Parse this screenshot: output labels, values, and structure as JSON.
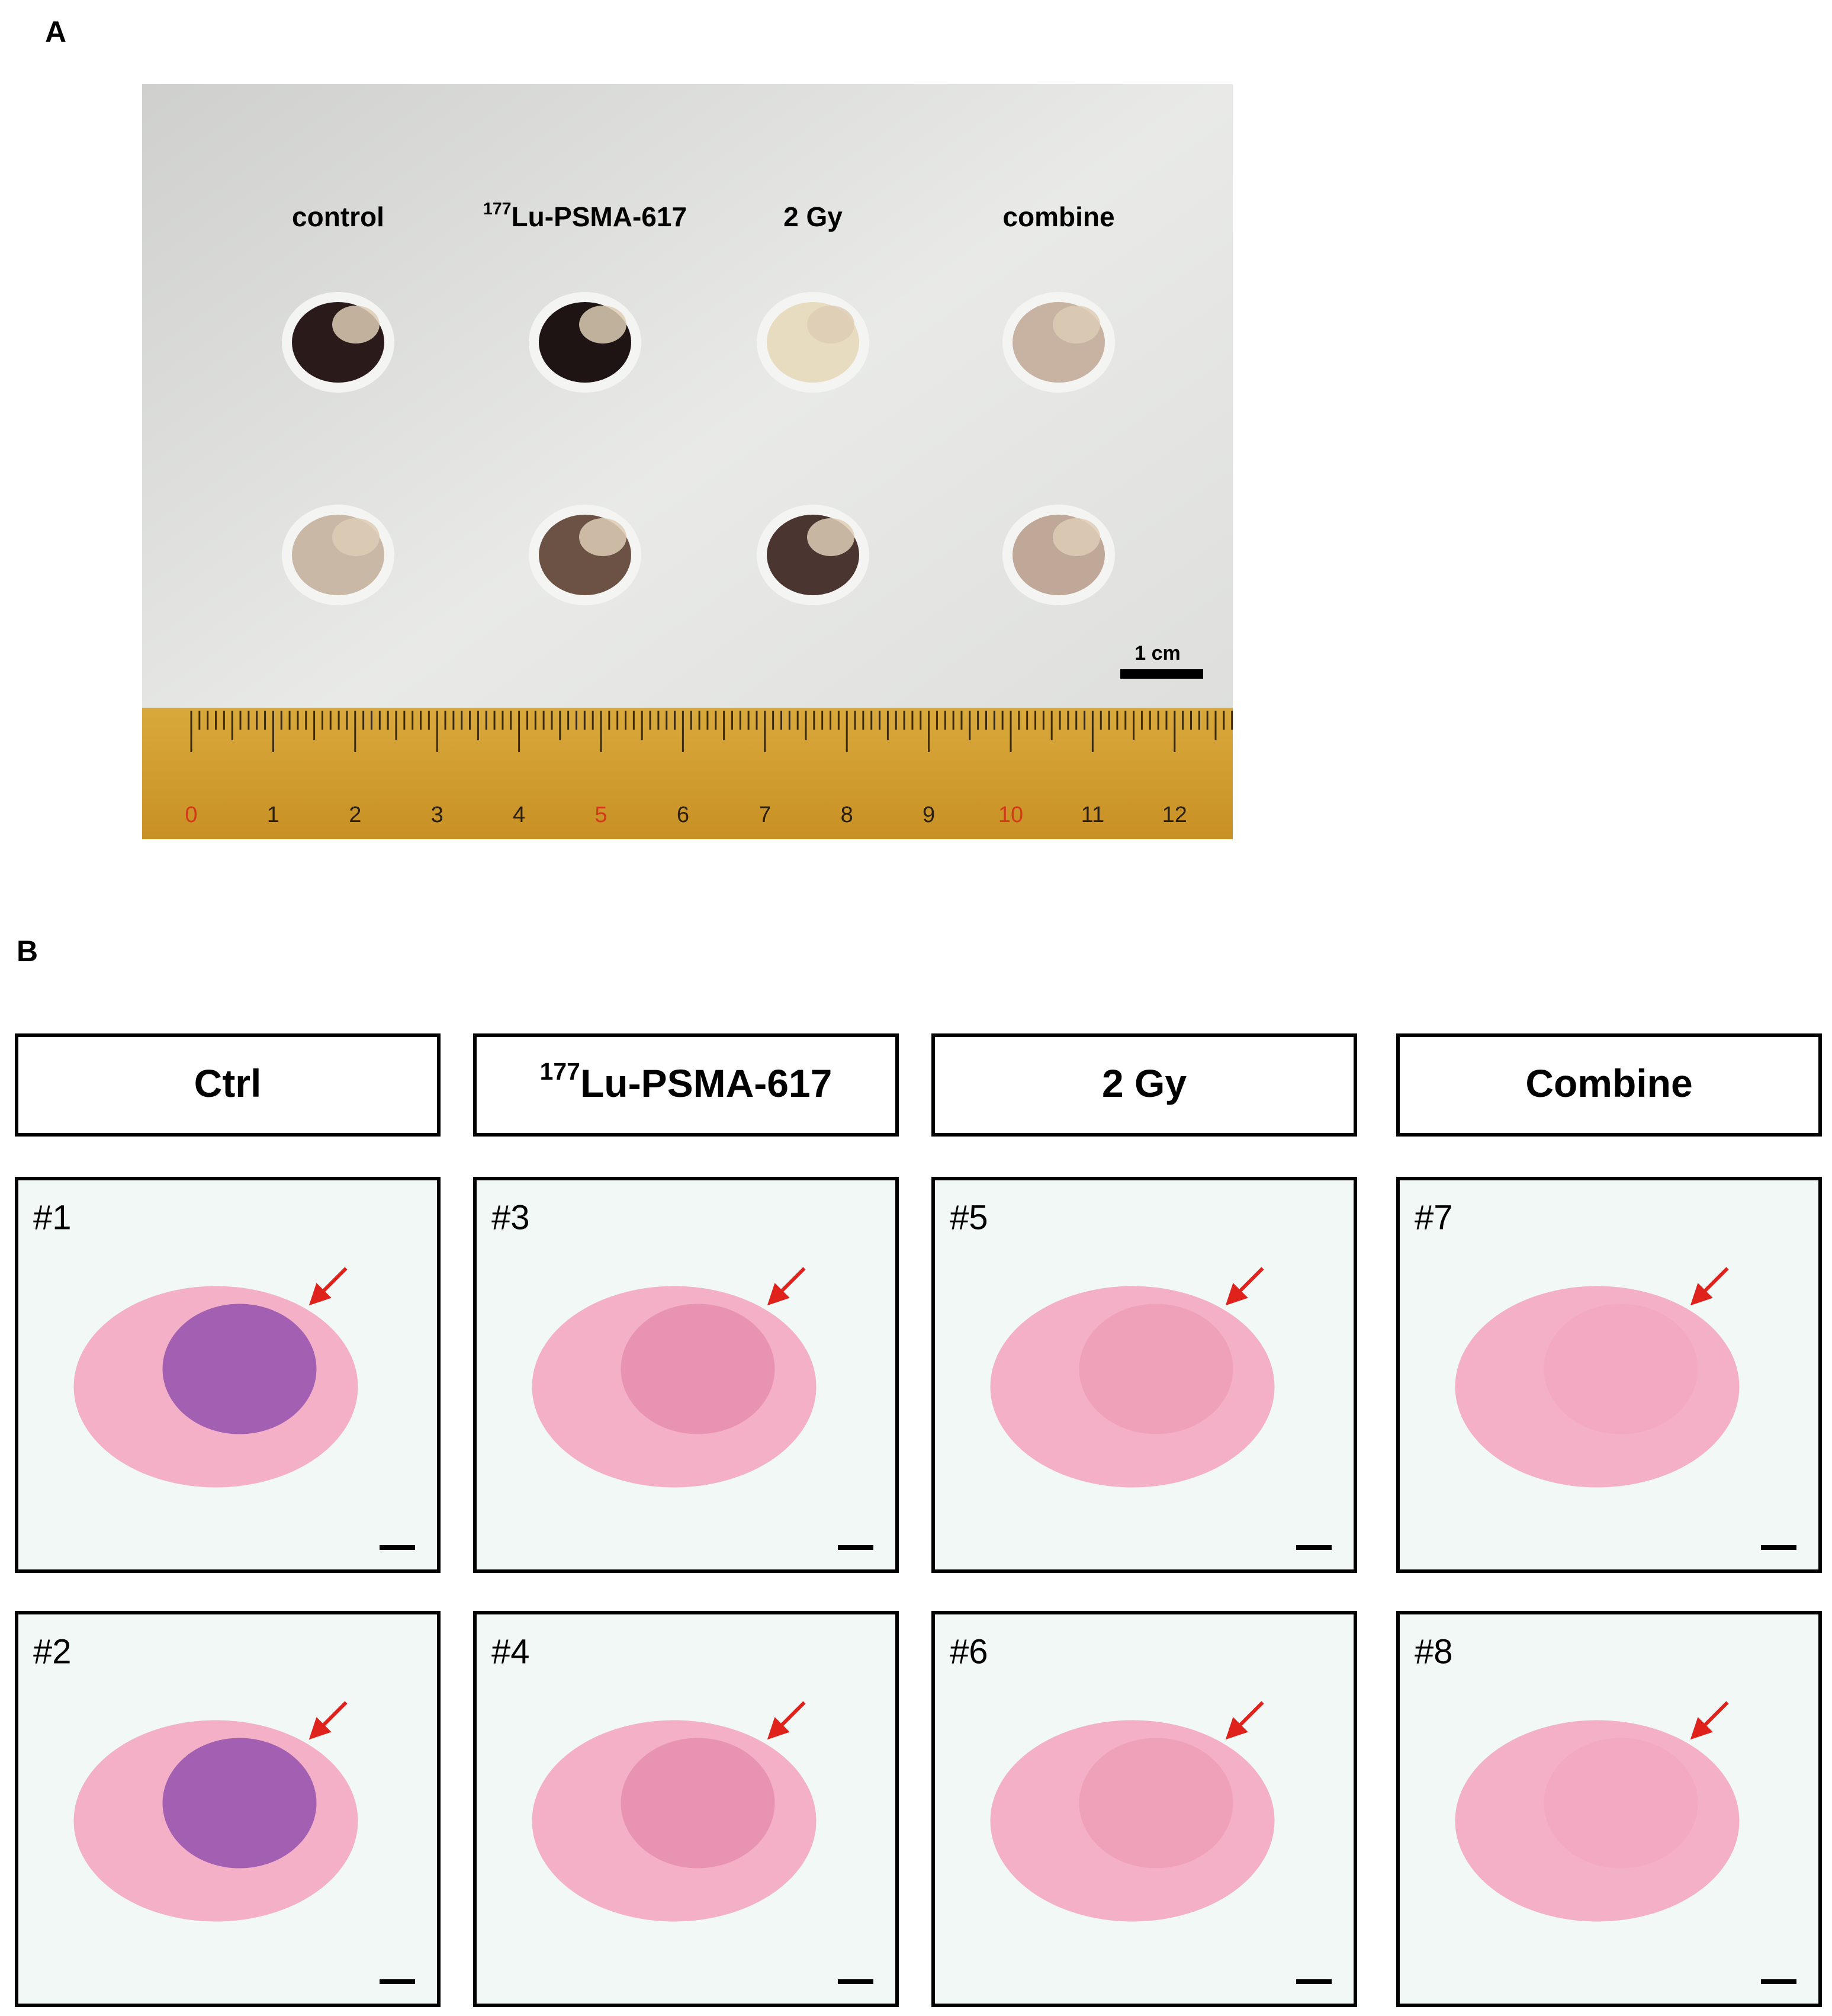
{
  "figure": {
    "panel_a": {
      "label": "A",
      "groups": [
        {
          "text": "control"
        },
        {
          "sup": "177",
          "text": "Lu-PSMA-617"
        },
        {
          "text": "2 Gy"
        },
        {
          "text": "combine"
        }
      ],
      "scale_bar": "1 cm",
      "ruler_numbers": [
        "0",
        "1",
        "2",
        "3",
        "4",
        "5",
        "6",
        "7",
        "8",
        "9",
        "10",
        "11",
        "12"
      ]
    },
    "panel_b": {
      "label": "B",
      "headers": [
        {
          "text": "Ctrl"
        },
        {
          "sup": "177",
          "text": "Lu-PSMA-617"
        },
        {
          "text": "2 Gy"
        },
        {
          "text": "Combine"
        }
      ],
      "samples": [
        [
          "#1",
          "#2"
        ],
        [
          "#3",
          "#4"
        ],
        [
          "#5",
          "#6"
        ],
        [
          "#7",
          "#8"
        ]
      ]
    }
  }
}
